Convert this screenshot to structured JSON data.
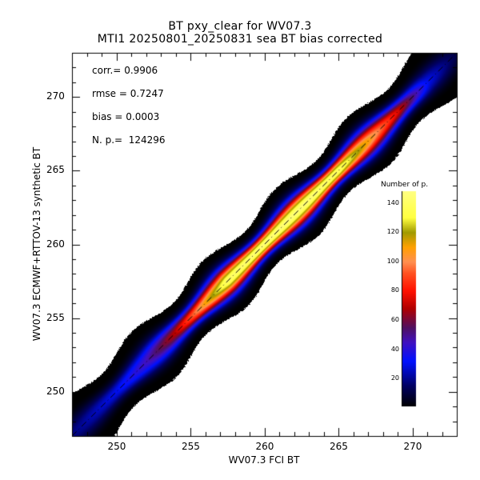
{
  "chart_data": {
    "type": "heatmap",
    "title": "BT pxy_clear for WV07.3",
    "subtitle": "MTI1 20250801_20250831 sea BT bias corrected",
    "xlabel": "WV07.3 FCI BT",
    "ylabel": "WV07.3 ECMWF+RTTOV-13 synthetic BT",
    "xlim": [
      247,
      273
    ],
    "ylim": [
      247,
      273
    ],
    "x_ticks": [
      250,
      255,
      260,
      265,
      270
    ],
    "y_ticks": [
      250,
      255,
      260,
      265,
      270
    ],
    "x_tick_labels": [
      "250",
      "255",
      "260",
      "265",
      "270"
    ],
    "y_tick_labels": [
      "250",
      "255",
      "260",
      "265",
      "270"
    ],
    "minor_tick_step": 1,
    "grid": false,
    "reference_line": {
      "type": "1:1",
      "style": "dash-dot",
      "color": "#000000"
    },
    "density": {
      "description": "2D histogram of point counts along the 1:1 line",
      "peak_along_x": [
        {
          "x": 247,
          "peak": 18
        },
        {
          "x": 250,
          "peak": 30
        },
        {
          "x": 252,
          "peak": 45
        },
        {
          "x": 254,
          "peak": 70
        },
        {
          "x": 256,
          "peak": 110
        },
        {
          "x": 257.5,
          "peak": 140
        },
        {
          "x": 260,
          "peak": 145
        },
        {
          "x": 263,
          "peak": 145
        },
        {
          "x": 265,
          "peak": 140
        },
        {
          "x": 267,
          "peak": 110
        },
        {
          "x": 269,
          "peak": 75
        },
        {
          "x": 271,
          "peak": 30
        },
        {
          "x": 273,
          "peak": 10
        }
      ],
      "spread_half_width_K": 1.9
    },
    "colorbar": {
      "title": "Number of p.",
      "range": [
        1,
        148
      ],
      "ticks": [
        20,
        40,
        60,
        80,
        100,
        120,
        140
      ],
      "tick_labels": [
        "20",
        "40",
        "60",
        "80",
        "100",
        "120",
        "140"
      ],
      "colormap_stops": [
        {
          "v": 1,
          "color": "#000000"
        },
        {
          "v": 15,
          "color": "#000060"
        },
        {
          "v": 32,
          "color": "#0010ff"
        },
        {
          "v": 45,
          "color": "#4010c0"
        },
        {
          "v": 55,
          "color": "#501060"
        },
        {
          "v": 68,
          "color": "#b00000"
        },
        {
          "v": 80,
          "color": "#ff1000"
        },
        {
          "v": 92,
          "color": "#ff5020"
        },
        {
          "v": 100,
          "color": "#ff9050"
        },
        {
          "v": 110,
          "color": "#ffa000"
        },
        {
          "v": 120,
          "color": "#a09a00"
        },
        {
          "v": 130,
          "color": "#ffff40"
        },
        {
          "v": 148,
          "color": "#ffff80"
        }
      ]
    },
    "annotations": [
      {
        "label": "corr.=",
        "value": "0.9906"
      },
      {
        "label": "rmse =",
        "value": "0.7247"
      },
      {
        "label": "bias =",
        "value": "0.0003"
      },
      {
        "label": "N. p.=",
        "value": " 124296"
      }
    ]
  }
}
